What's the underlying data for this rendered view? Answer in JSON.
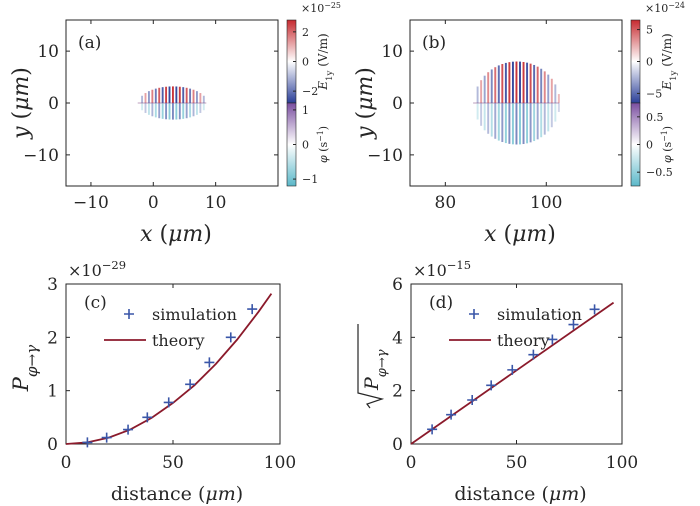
{
  "panels": [
    {
      "id": "a",
      "panel_label": "(a)",
      "type": "heatmap",
      "xlabel": "x (μm)",
      "ylabel": "y (μm)",
      "xticks": [
        "-10",
        "0",
        "10"
      ],
      "yticks": [
        "10",
        "0",
        "-10"
      ],
      "xrange": [
        -14,
        20
      ],
      "yrange": [
        -16,
        16
      ],
      "colorbar_E": {
        "label": "E_1y (V/m)",
        "exponent": "×10^-25",
        "ticks": [
          "2",
          "0",
          "-2"
        ],
        "range": [
          -2.8,
          2.8
        ]
      },
      "colorbar_phi": {
        "label": "φ (s^-1)",
        "ticks": [
          "1",
          "0",
          "-1"
        ],
        "range": [
          -1.2,
          1.2
        ]
      },
      "blob": {
        "center_x": 3,
        "center_y": 0,
        "half_width": 5.5,
        "half_height": 3.2,
        "fringe_period": 0.55
      }
    },
    {
      "id": "b",
      "panel_label": "(b)",
      "type": "heatmap",
      "xlabel": "x (μm)",
      "ylabel": "y (μm)",
      "xticks": [
        "80",
        "100"
      ],
      "yticks": [
        "10",
        "0",
        "-10"
      ],
      "xrange": [
        73,
        115
      ],
      "yrange": [
        -16,
        16
      ],
      "colorbar_E": {
        "label": "E_1y (V/m)",
        "exponent": "×10^-24",
        "ticks": [
          "5",
          "0",
          "-5"
        ],
        "range": [
          -6.5,
          6.5
        ]
      },
      "colorbar_phi": {
        "label": "φ (s^-1)",
        "ticks": [
          "0.5",
          "0",
          "-0.5"
        ],
        "range": [
          -0.75,
          0.75
        ]
      },
      "blob": {
        "center_x": 94,
        "center_y": 0,
        "half_width": 8.5,
        "half_height": 8,
        "fringe_period": 0.7
      }
    }
  ],
  "chart_data": [
    {
      "id": "c",
      "panel_label": "(c)",
      "type": "scatter",
      "exponent": "×10^-29",
      "xlabel": "distance (μm)",
      "ylabel": "P_φ→γ",
      "xlim": [
        0,
        100
      ],
      "ylim": [
        0,
        3
      ],
      "xticks": [
        0,
        50,
        100
      ],
      "yticks": [
        0,
        1,
        2,
        3
      ],
      "series": [
        {
          "name": "simulation",
          "marker": "plus",
          "color": "#3a56a8",
          "x": [
            10,
            19,
            29,
            38,
            48,
            58,
            67,
            77,
            87
          ],
          "y": [
            0.03,
            0.12,
            0.27,
            0.5,
            0.78,
            1.12,
            1.53,
            2.0,
            2.53
          ]
        },
        {
          "name": "theory",
          "marker": "line",
          "color": "#8b1a2b",
          "x": [
            0,
            10,
            20,
            30,
            40,
            50,
            60,
            70,
            80,
            90,
            96
          ],
          "y": [
            0,
            0.03,
            0.12,
            0.27,
            0.49,
            0.77,
            1.1,
            1.5,
            1.96,
            2.48,
            2.82
          ]
        }
      ]
    },
    {
      "id": "d",
      "panel_label": "(d)",
      "type": "scatter",
      "exponent": "×10^-15",
      "xlabel": "distance (μm)",
      "ylabel": "√P_φ→γ",
      "xlim": [
        0,
        100
      ],
      "ylim": [
        0,
        6
      ],
      "xticks": [
        0,
        50,
        100
      ],
      "yticks": [
        0,
        2,
        4,
        6
      ],
      "series": [
        {
          "name": "simulation",
          "marker": "plus",
          "color": "#3a56a8",
          "x": [
            10,
            19,
            29,
            38,
            48,
            58,
            67,
            77,
            87
          ],
          "y": [
            0.55,
            1.1,
            1.65,
            2.2,
            2.78,
            3.35,
            3.92,
            4.48,
            5.05
          ]
        },
        {
          "name": "theory",
          "marker": "line",
          "color": "#8b1a2b",
          "x": [
            0,
            96
          ],
          "y": [
            0,
            5.3
          ]
        }
      ]
    }
  ]
}
